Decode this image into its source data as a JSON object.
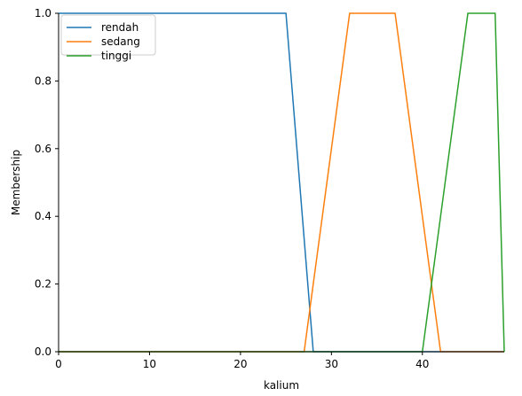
{
  "chart_data": {
    "type": "line",
    "title": "",
    "xlabel": "kalium",
    "ylabel": "Membership",
    "xlim": [
      0,
      49
    ],
    "ylim": [
      0,
      1
    ],
    "xticks": [
      0,
      10,
      20,
      30,
      40
    ],
    "xtick_labels": [
      "0",
      "10",
      "20",
      "30",
      "40"
    ],
    "yticks": [
      0,
      0.2,
      0.4,
      0.6,
      0.8,
      1.0
    ],
    "ytick_labels": [
      "0.0",
      "0.2",
      "0.4",
      "0.6",
      "0.8",
      "1.0"
    ],
    "grid": false,
    "legend_position": "top-left",
    "series": [
      {
        "name": "rendah",
        "color": "#1f77b4",
        "x": [
          0,
          25,
          28,
          49
        ],
        "y": [
          1,
          1,
          0,
          0
        ]
      },
      {
        "name": "sedang",
        "color": "#ff7f0e",
        "x": [
          0,
          27,
          32,
          37,
          42,
          49
        ],
        "y": [
          0,
          0,
          1,
          1,
          0,
          0
        ]
      },
      {
        "name": "tinggi",
        "color": "#2ca02c",
        "x": [
          0,
          40,
          45,
          48,
          49
        ],
        "y": [
          0,
          0,
          1,
          1,
          0
        ]
      }
    ]
  }
}
